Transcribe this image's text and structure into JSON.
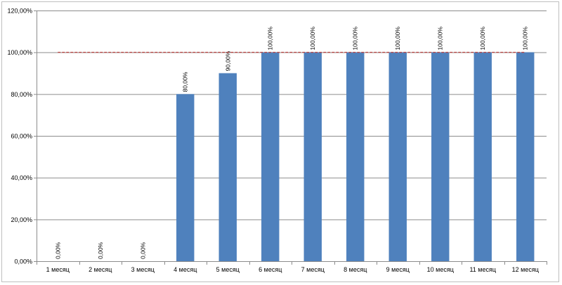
{
  "chart_data": {
    "type": "bar",
    "title": "",
    "xlabel": "",
    "ylabel": "",
    "categories": [
      "1 месяц",
      "2 месяц",
      "3 месяц",
      "4 месяц",
      "5 месяц",
      "6 месяц",
      "7 месяц",
      "8 месяц",
      "9 месяц",
      "10 месяц",
      "11 месяц",
      "12 месяц"
    ],
    "values": [
      0,
      0,
      0,
      80,
      90,
      100,
      100,
      100,
      100,
      100,
      100,
      100
    ],
    "data_labels": [
      "0,00%",
      "0,00%",
      "0,00%",
      "80,00%",
      "90,00%",
      "100,00%",
      "100,00%",
      "100,00%",
      "100,00%",
      "100,00%",
      "100,00%",
      "100,00%"
    ],
    "yticks": [
      0,
      20,
      40,
      60,
      80,
      100,
      120
    ],
    "ytick_labels": [
      "0,00%",
      "20,00%",
      "40,00%",
      "60,00%",
      "80,00%",
      "100,00%",
      "120,00%"
    ],
    "ylim": [
      0,
      120
    ],
    "grid": true,
    "legend": "none",
    "reference_line": {
      "value": 100,
      "style": "dashed",
      "color": "#c0504d"
    },
    "colors": {
      "bar": "#4f81bd",
      "grid": "#8c8c8c",
      "reference": "#c0504d"
    }
  }
}
